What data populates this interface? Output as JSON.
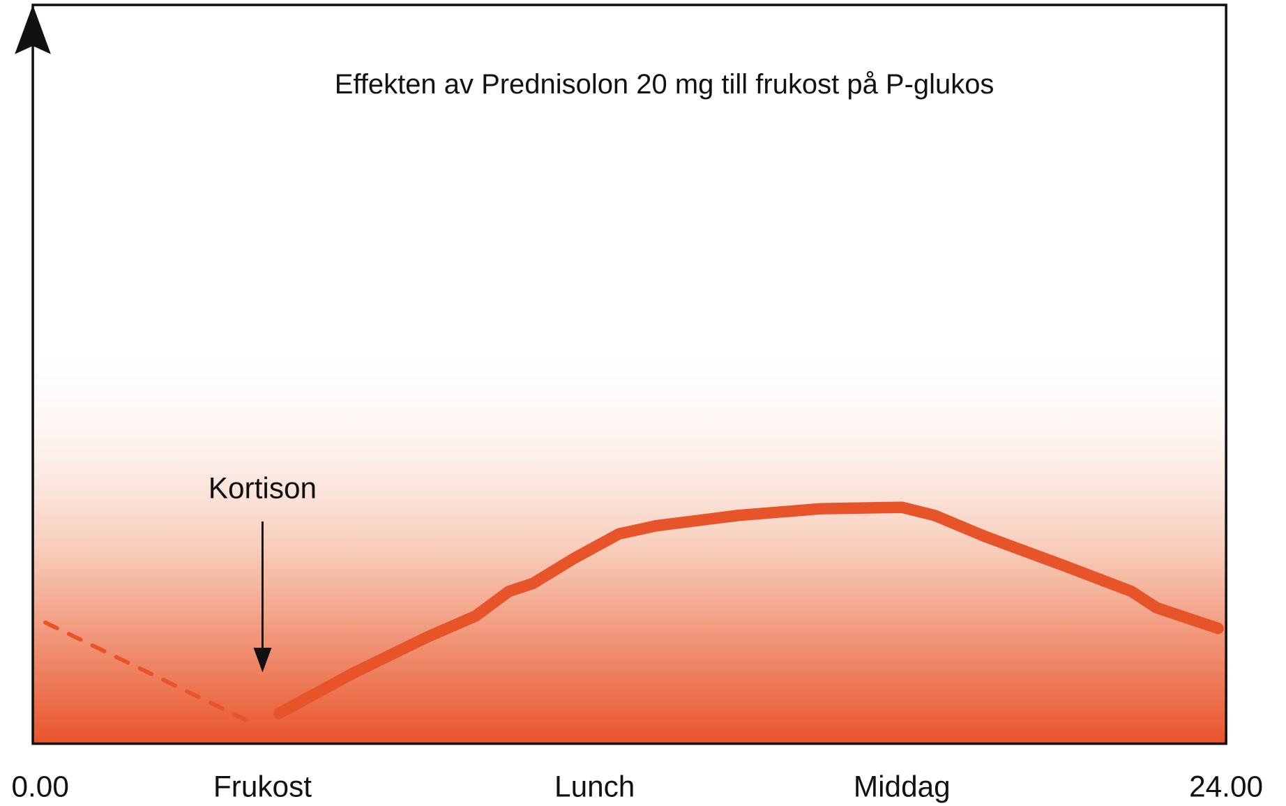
{
  "chart_data": {
    "type": "line",
    "title": "Effekten av Prednisolon 20 mg till frukost på P-glukos",
    "annotation": "Kortison",
    "xlim": [
      0,
      24
    ],
    "ylim": [
      0,
      100
    ],
    "xticks": [
      {
        "value": 0,
        "label": "0.00"
      },
      {
        "value": 4.62,
        "label": "Frukost"
      },
      {
        "value": 11.3,
        "label": "Lunch"
      },
      {
        "value": 17.48,
        "label": "Middag"
      },
      {
        "value": 24,
        "label": "24.00"
      }
    ],
    "gradient_fill": true,
    "series": [
      {
        "color": "#e8542a",
        "dashed": true,
        "x": [
          0.25,
          4.29
        ],
        "values": [
          16.4,
          3.2
        ]
      },
      {
        "color": "#e8542a",
        "dashed": false,
        "x": [
          4.95,
          6.43,
          7.92,
          8.91,
          9.57,
          10.06,
          10.89,
          11.79,
          12.54,
          14.19,
          15.84,
          17.48,
          18.14,
          19.13,
          20.78,
          22.1,
          22.6,
          23.84
        ],
        "values": [
          4.1,
          9.5,
          14.4,
          17.3,
          20.6,
          21.7,
          25.1,
          28.4,
          29.5,
          30.9,
          31.8,
          32.0,
          30.9,
          28.1,
          24.0,
          20.6,
          18.4,
          15.6
        ]
      }
    ]
  }
}
